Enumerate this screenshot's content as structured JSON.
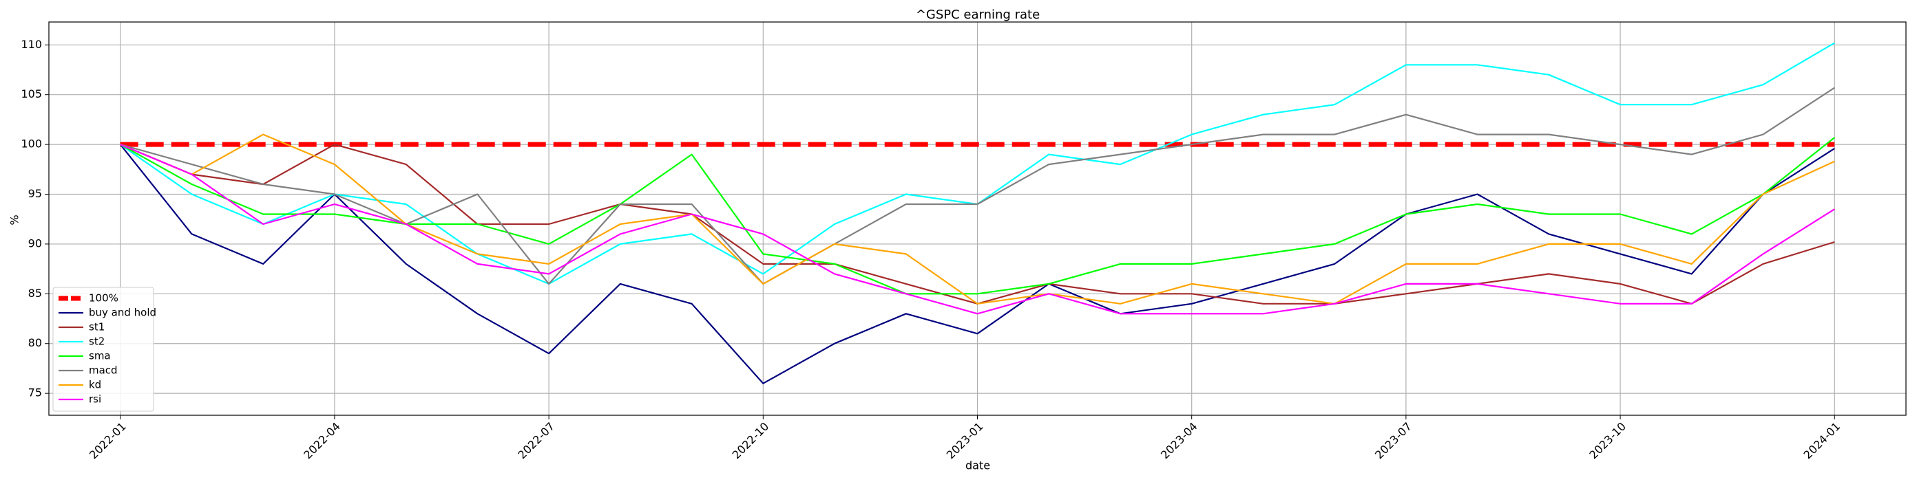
{
  "chart_data": {
    "type": "line",
    "title": "^GSPC earning rate",
    "xlabel": "date",
    "ylabel": "%",
    "x": [
      "2022-01",
      "2022-02",
      "2022-03",
      "2022-04",
      "2022-05",
      "2022-06",
      "2022-07",
      "2022-08",
      "2022-09",
      "2022-10",
      "2022-11",
      "2022-12",
      "2023-01",
      "2023-02",
      "2023-03",
      "2023-04",
      "2023-05",
      "2023-06",
      "2023-07",
      "2023-08",
      "2023-09",
      "2023-10",
      "2023-11",
      "2023-12",
      "2024-01"
    ],
    "series": [
      {
        "name": "100%",
        "color": "#ff0000",
        "linestyle": "dashed",
        "values": [
          100,
          100,
          100,
          100,
          100,
          100,
          100,
          100,
          100,
          100,
          100,
          100,
          100,
          100,
          100,
          100,
          100,
          100,
          100,
          100,
          100,
          100,
          100,
          100,
          100
        ]
      },
      {
        "name": "buy and hold",
        "color": "#000080",
        "values": [
          100,
          91,
          88,
          95,
          88,
          83,
          79,
          86,
          84,
          76,
          80,
          83,
          81,
          86,
          83,
          84,
          86,
          88,
          93,
          95,
          91,
          89,
          87,
          95,
          99.6
        ]
      },
      {
        "name": "st1",
        "color": "#a52a2a",
        "values": [
          100,
          97,
          96,
          100,
          98,
          92,
          92,
          94,
          93,
          88,
          88,
          86,
          84,
          86,
          85,
          85,
          84,
          84,
          85,
          86,
          87,
          86,
          84,
          88,
          90.2
        ]
      },
      {
        "name": "st2",
        "color": "#00ffff",
        "values": [
          100,
          95,
          92,
          95,
          94,
          89,
          86,
          90,
          91,
          87,
          92,
          95,
          94,
          99,
          98,
          101,
          103,
          104,
          108,
          108,
          107,
          104,
          104,
          106,
          110.2
        ]
      },
      {
        "name": "sma",
        "color": "#00ff00",
        "values": [
          100,
          96,
          93,
          93,
          92,
          92,
          90,
          94,
          99,
          89,
          88,
          85,
          85,
          86,
          88,
          88,
          89,
          90,
          93,
          94,
          93,
          93,
          91,
          95,
          100.7
        ]
      },
      {
        "name": "macd",
        "color": "#808080",
        "values": [
          100,
          98,
          96,
          95,
          92,
          95,
          86,
          94,
          94,
          86,
          90,
          94,
          94,
          98,
          99,
          100,
          101,
          101,
          103,
          101,
          101,
          100,
          99,
          101,
          105.7
        ]
      },
      {
        "name": "kd",
        "color": "#ffa500",
        "values": [
          100,
          97,
          101,
          98,
          92,
          89,
          88,
          92,
          93,
          86,
          90,
          89,
          84,
          85,
          84,
          86,
          85,
          84,
          88,
          88,
          90,
          90,
          88,
          95,
          98.3
        ]
      },
      {
        "name": "rsi",
        "color": "#ff00ff",
        "values": [
          100,
          97,
          92,
          94,
          92,
          88,
          87,
          91,
          93,
          91,
          87,
          85,
          83,
          85,
          83,
          83,
          83,
          84,
          86,
          86,
          85,
          84,
          84,
          89,
          93.5
        ]
      }
    ],
    "xlim": [
      "2021-12",
      "2024-02"
    ],
    "xticks": [
      "2022-01",
      "2022-04",
      "2022-07",
      "2022-10",
      "2023-01",
      "2023-04",
      "2023-07",
      "2023-10",
      "2024-01"
    ],
    "ylim": [
      72.8,
      112.3
    ],
    "yticks": [
      75,
      80,
      85,
      90,
      95,
      100,
      105,
      110
    ],
    "grid": true,
    "legend": "lower left"
  }
}
